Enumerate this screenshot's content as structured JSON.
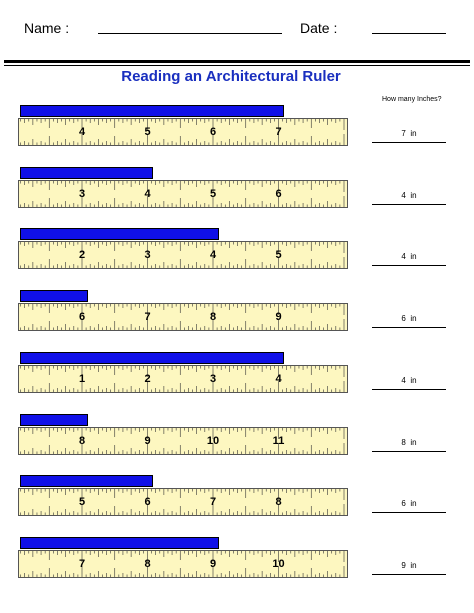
{
  "header": {
    "name_label": "Name :",
    "date_label": "Date :"
  },
  "title": "Reading an Architectural Ruler",
  "question": "How many Inches?",
  "unit": "in",
  "rows": [
    {
      "ruler_numbers": [
        "4",
        "5",
        "6",
        "7"
      ],
      "bar_inches": 4,
      "answer": "7"
    },
    {
      "ruler_numbers": [
        "3",
        "4",
        "5",
        "6"
      ],
      "bar_inches": 2,
      "answer": "4"
    },
    {
      "ruler_numbers": [
        "2",
        "3",
        "4",
        "5"
      ],
      "bar_inches": 3,
      "answer": "4"
    },
    {
      "ruler_numbers": [
        "6",
        "7",
        "8",
        "9"
      ],
      "bar_inches": 1,
      "answer": "6"
    },
    {
      "ruler_numbers": [
        "1",
        "2",
        "3",
        "4"
      ],
      "bar_inches": 4,
      "answer": "4"
    },
    {
      "ruler_numbers": [
        "8",
        "9",
        "10",
        "11"
      ],
      "bar_inches": 1,
      "answer": "8"
    },
    {
      "ruler_numbers": [
        "5",
        "6",
        "7",
        "8"
      ],
      "bar_inches": 2,
      "answer": "6"
    },
    {
      "ruler_numbers": [
        "7",
        "8",
        "9",
        "10"
      ],
      "bar_inches": 3,
      "answer": "9"
    }
  ]
}
